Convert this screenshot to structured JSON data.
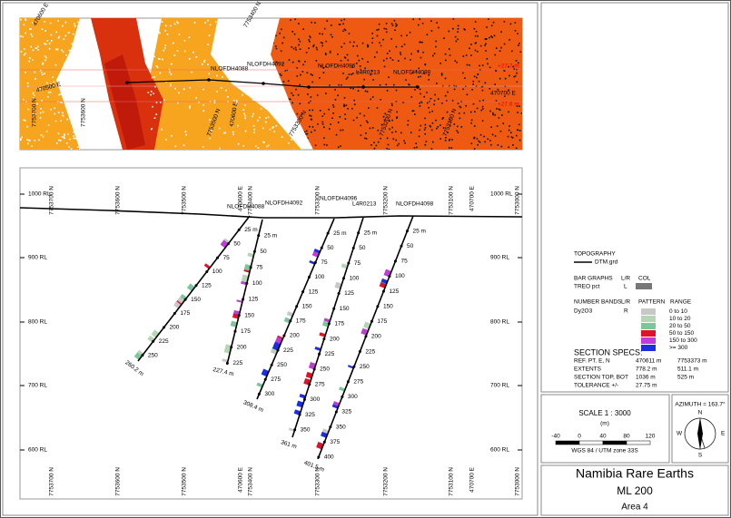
{
  "plan_map": {
    "labels": [
      "470600 E",
      "470500 E",
      "7753700 N",
      "7753600 N",
      "7753500 N",
      "470600 E",
      "7753400 N",
      "NLOFDH4088",
      "NLOFDH4092",
      "NLOFDH4096",
      "L4R0213",
      "NLOFDH4098",
      "+27.7 m",
      "470700 E",
      "+27.8 m",
      "7753300 N",
      "7753200 N",
      "7753100 N"
    ]
  },
  "section": {
    "rl_labels": [
      "1000 RL",
      "900 RL",
      "800 RL",
      "700 RL",
      "600 RL"
    ],
    "top_labels": [
      "7753700 N",
      "7753600 N",
      "7753500 N",
      "470600 E",
      "7753400 N",
      "7753300 N",
      "7753200 N",
      "7753100 N",
      "470700 E",
      "7753000 N"
    ],
    "bottom_labels": [
      "7753700 N",
      "7753600 N",
      "7753500 N",
      "470600 E",
      "7753400 N",
      "7753300 N",
      "7753200 N",
      "7753100 N",
      "470700 E",
      "7753000 N"
    ],
    "holes": [
      {
        "name": "NLOFDH4088",
        "depths": [
          "25 m",
          "50",
          "75",
          "100",
          "125",
          "150",
          "175",
          "200",
          "225",
          "250"
        ],
        "end": "260.2 m"
      },
      {
        "name": "NLOFDH4092",
        "depths": [
          "25 m",
          "50",
          "75",
          "100",
          "125",
          "150",
          "175",
          "200",
          "225"
        ],
        "end": "227.4 m"
      },
      {
        "name": "NLOFDH4096",
        "depths": [
          "25 m",
          "50",
          "75",
          "100",
          "125",
          "150",
          "175",
          "200",
          "225",
          "250",
          "275",
          "300"
        ],
        "end": "308.4 m"
      },
      {
        "name": "L4R0213",
        "depths": [
          "25 m",
          "50",
          "75",
          "100",
          "125",
          "150",
          "175",
          "200",
          "225",
          "250",
          "275",
          "300",
          "325",
          "350"
        ],
        "end": "361 m"
      },
      {
        "name": "NLOFDH4098",
        "depths": [
          "25 m",
          "50",
          "75",
          "100",
          "125",
          "150",
          "175",
          "200",
          "225",
          "250",
          "275",
          "300",
          "325",
          "350",
          "375",
          "400"
        ],
        "end": "401.5 m"
      }
    ]
  },
  "legend": {
    "topography": "TOPOGRAPHY",
    "dtm": "DTM.grd",
    "bar_graphs": "BAR GRAPHS",
    "bar_lr": "L/R",
    "bar_col": "COL",
    "treo": "TREO pct",
    "treo_lr": "L",
    "number_bands": "NUMBER BANDS",
    "nb_lr": "L/R",
    "pattern": "PATTERN",
    "range": "RANGE",
    "dy": "Dy2O3",
    "dy_lr": "R",
    "ranges": [
      "0 to 10",
      "10 to 20",
      "20 to 50",
      "50 to 150",
      "150 to 300",
      ">= 300"
    ]
  },
  "specs": {
    "title": "SECTION  SPECS:",
    "rows": [
      [
        "REF. PT. E, N",
        "470611 m",
        "7753373 m"
      ],
      [
        "EXTENTS",
        "778.2 m",
        "511.1 m"
      ],
      [
        "SECTION TOP, BOT",
        "1036 m",
        "525 m"
      ],
      [
        "TOLERANCE +/-",
        "27.75 m"
      ]
    ]
  },
  "scale": {
    "title": "SCALE  1 : 3000",
    "unit": "(m)",
    "ticks": [
      "-40",
      "0",
      "40",
      "80",
      "120"
    ],
    "datum": "WGS 84 / UTM zone 33S"
  },
  "azimuth": {
    "label": "AZIMUTH = 163.7°",
    "n": "N",
    "e": "E",
    "s": "S",
    "w": "W"
  },
  "title_block": {
    "title": "Namibia Rare Earths",
    "licence": "ML 200",
    "area": "Area 4"
  }
}
